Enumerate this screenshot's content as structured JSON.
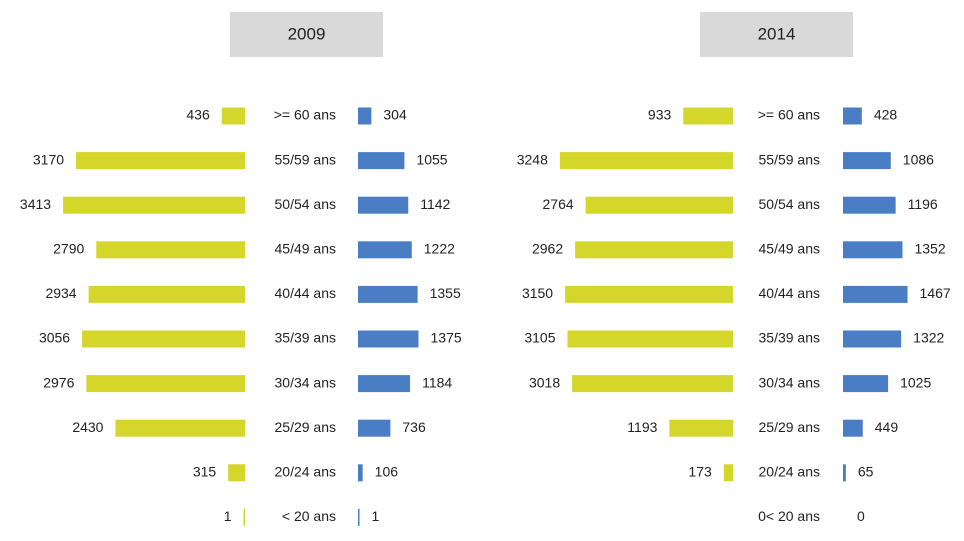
{
  "chart_data": [
    {
      "type": "butterfly",
      "title": "2009",
      "categories": [
        ">= 60 ans",
        "55/59 ans",
        "50/54 ans",
        "45/49 ans",
        "40/44 ans",
        "35/39 ans",
        "30/34 ans",
        "25/29 ans",
        "20/24 ans",
        "< 20 ans"
      ],
      "series": [
        {
          "color": "#d4d62a",
          "values": [
            436,
            3170,
            3413,
            2790,
            2934,
            3056,
            2976,
            2430,
            315,
            1
          ]
        },
        {
          "color": "#4a7ec4",
          "values": [
            304,
            1055,
            1142,
            1222,
            1355,
            1375,
            1184,
            736,
            106,
            1
          ]
        }
      ]
    },
    {
      "type": "butterfly",
      "title": "2014",
      "categories": [
        ">= 60 ans",
        "55/59 ans",
        "50/54 ans",
        "45/49 ans",
        "40/44 ans",
        "35/39 ans",
        "30/34 ans",
        "25/29 ans",
        "20/24 ans",
        "0< 20 ans"
      ],
      "series": [
        {
          "color": "#d4d62a",
          "values": [
            933,
            3248,
            2764,
            2962,
            3150,
            3105,
            3018,
            1193,
            173,
            null
          ]
        },
        {
          "color": "#4a7ec4",
          "values": [
            428,
            1086,
            1196,
            1352,
            1467,
            1322,
            1025,
            449,
            65,
            0
          ]
        }
      ]
    }
  ]
}
